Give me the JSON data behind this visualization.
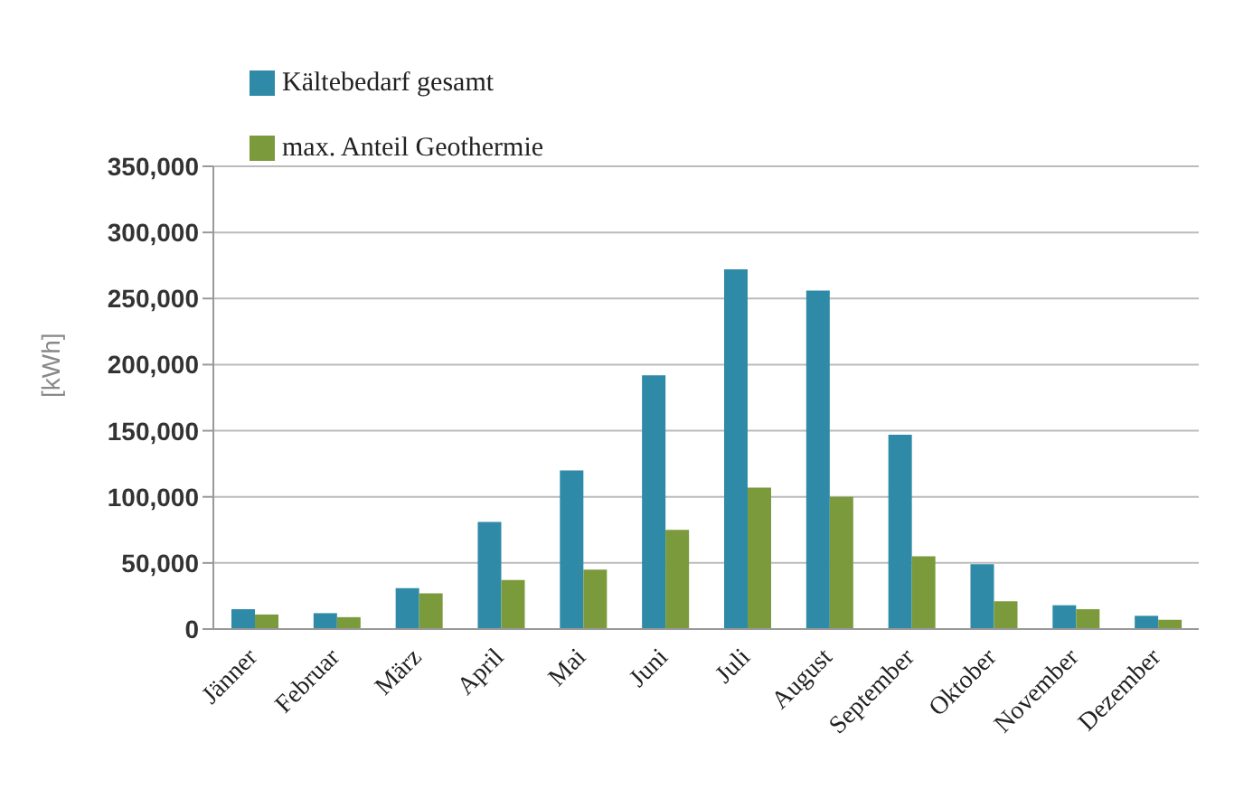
{
  "chart_data": {
    "type": "bar",
    "ylabel": "[kWh]",
    "categories": [
      "Jänner",
      "Februar",
      "März",
      "April",
      "Mai",
      "Juni",
      "Juli",
      "August",
      "September",
      "Oktober",
      "November",
      "Dezember"
    ],
    "series": [
      {
        "name": "Kältebedarf gesamt",
        "color": "#2e8aa6",
        "values": [
          15000,
          12000,
          31000,
          81000,
          120000,
          192000,
          272000,
          256000,
          147000,
          49000,
          18000,
          10000
        ]
      },
      {
        "name": "max. Anteil Geothermie",
        "color": "#7a9a3c",
        "values": [
          11000,
          9000,
          27000,
          37000,
          45000,
          75000,
          107000,
          100000,
          55000,
          21000,
          15000,
          7000
        ]
      }
    ],
    "ylim": [
      0,
      350000
    ],
    "yticks": [
      {
        "value": 0,
        "label": "0"
      },
      {
        "value": 50000,
        "label": "50,000"
      },
      {
        "value": 100000,
        "label": "100,000"
      },
      {
        "value": 150000,
        "label": "150,000"
      },
      {
        "value": 200000,
        "label": "200,000"
      },
      {
        "value": 250000,
        "label": "250,000"
      },
      {
        "value": 300000,
        "label": "300,000"
      },
      {
        "value": 350000,
        "label": "350,000"
      }
    ],
    "grid": "y",
    "legend": "top left"
  }
}
